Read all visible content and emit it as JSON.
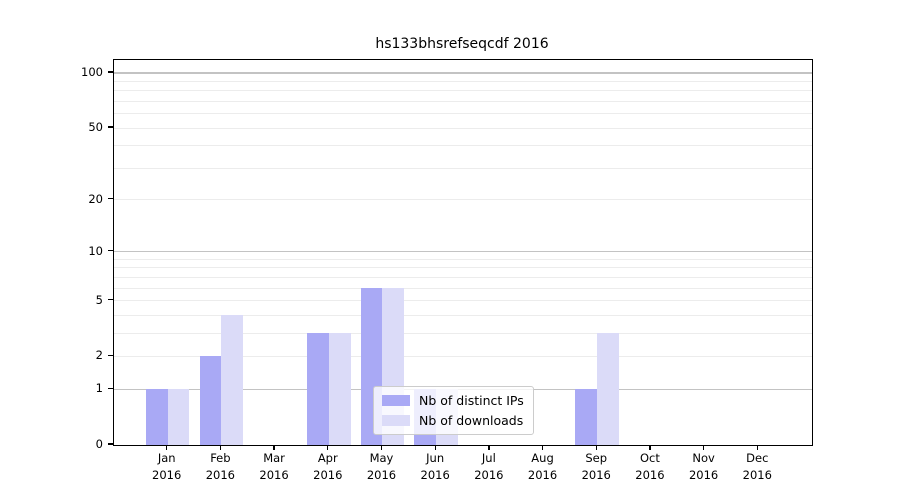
{
  "chart_data": {
    "type": "bar",
    "title": "hs133bhsrefseqcdf 2016",
    "categories": [
      "Jan",
      "Feb",
      "Mar",
      "Apr",
      "May",
      "Jun",
      "Jul",
      "Aug",
      "Sep",
      "Oct",
      "Nov",
      "Dec"
    ],
    "x_year_label": "2016",
    "series": [
      {
        "name": "Nb of distinct IPs",
        "color": "#a9a9f5",
        "values": [
          1,
          2,
          0,
          3,
          6,
          1,
          0,
          0,
          1,
          0,
          0,
          0
        ]
      },
      {
        "name": "Nb of downloads",
        "color": "#dbdbf8",
        "values": [
          1,
          4,
          0,
          3,
          6,
          1,
          0,
          0,
          3,
          0,
          0,
          0
        ]
      }
    ],
    "y_axis": {
      "scale": "log10(value+1)",
      "ticks": [
        0,
        1,
        2,
        5,
        10,
        20,
        50,
        100
      ],
      "major_gridlines": [
        1,
        10,
        100
      ],
      "minor_gridlines": [
        2,
        3,
        4,
        5,
        6,
        7,
        8,
        9,
        20,
        30,
        40,
        50,
        60,
        70,
        80,
        90
      ],
      "ylim_top": 117.6
    },
    "legend_position": "inside-bottom-center",
    "grid": true
  },
  "style": {
    "background": "#ffffff",
    "axis_color": "#000000",
    "major_grid_color": "#c3c3c3",
    "minor_grid_color": "#ececec",
    "legend_border_color": "#cccccc"
  }
}
